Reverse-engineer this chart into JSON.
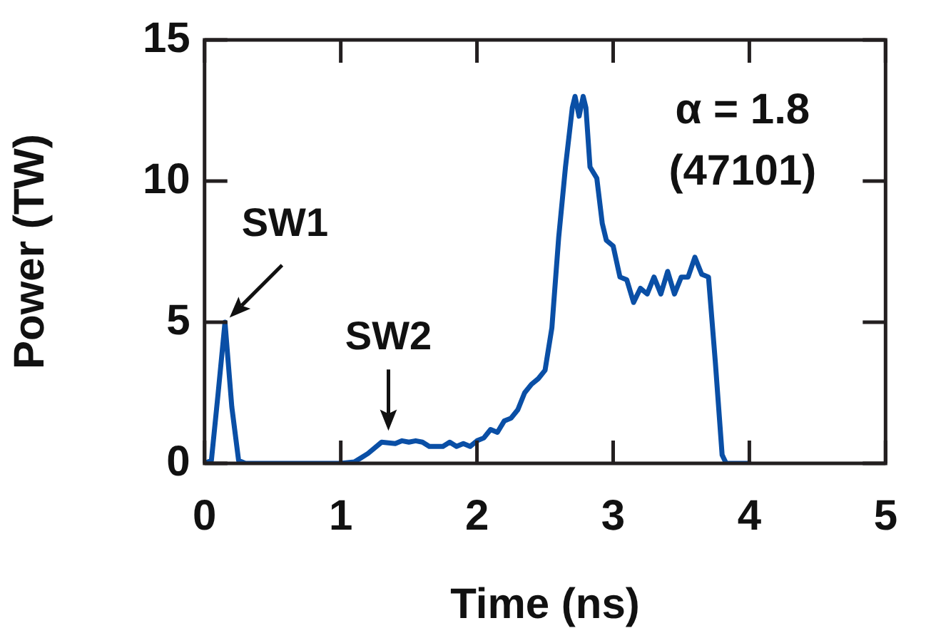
{
  "chart_data": {
    "type": "line",
    "xlabel": "Time (ns)",
    "ylabel": "Power (TW)",
    "xlim": [
      0,
      5
    ],
    "ylim": [
      0,
      15
    ],
    "xticks": [
      0,
      1,
      2,
      3,
      4,
      5
    ],
    "yticks": [
      0,
      5,
      10,
      15
    ],
    "grid": false,
    "legend": false,
    "marker": "none",
    "line_style": "solid",
    "series": [
      {
        "color": "#0a4fa6",
        "x": [
          0,
          0.05,
          0.1,
          0.15,
          0.2,
          0.25,
          0.3,
          1.0,
          1.1,
          1.2,
          1.3,
          1.4,
          1.45,
          1.5,
          1.55,
          1.6,
          1.65,
          1.75,
          1.8,
          1.85,
          1.9,
          1.95,
          2.0,
          2.05,
          2.1,
          2.15,
          2.2,
          2.25,
          2.3,
          2.35,
          2.4,
          2.45,
          2.5,
          2.55,
          2.6,
          2.65,
          2.7,
          2.72,
          2.75,
          2.78,
          2.8,
          2.83,
          2.88,
          2.92,
          2.95,
          3.0,
          3.05,
          3.1,
          3.15,
          3.2,
          3.25,
          3.3,
          3.35,
          3.4,
          3.45,
          3.5,
          3.55,
          3.6,
          3.65,
          3.7,
          3.75,
          3.8,
          3.83,
          4.0
        ],
        "values": [
          0,
          0.1,
          2.5,
          5,
          2,
          0.1,
          0,
          0,
          0.05,
          0.35,
          0.75,
          0.7,
          0.8,
          0.75,
          0.8,
          0.75,
          0.6,
          0.6,
          0.75,
          0.6,
          0.7,
          0.6,
          0.8,
          0.9,
          1.2,
          1.1,
          1.5,
          1.6,
          1.9,
          2.5,
          2.8,
          3.0,
          3.3,
          4.8,
          8.0,
          10.5,
          12.6,
          13.0,
          12.3,
          13.0,
          12.6,
          10.5,
          10.1,
          8.5,
          7.9,
          7.7,
          6.6,
          6.5,
          5.7,
          6.2,
          6.0,
          6.6,
          6.0,
          6.8,
          6.0,
          6.6,
          6.6,
          7.3,
          6.7,
          6.6,
          3.6,
          0.3,
          0,
          0
        ]
      }
    ],
    "annotations": [
      {
        "text": "SW1",
        "x": 0.15,
        "y": 5
      },
      {
        "text": "SW2",
        "x": 1.35,
        "y": 0.8
      },
      "α = 1.8",
      "(47101)"
    ]
  }
}
